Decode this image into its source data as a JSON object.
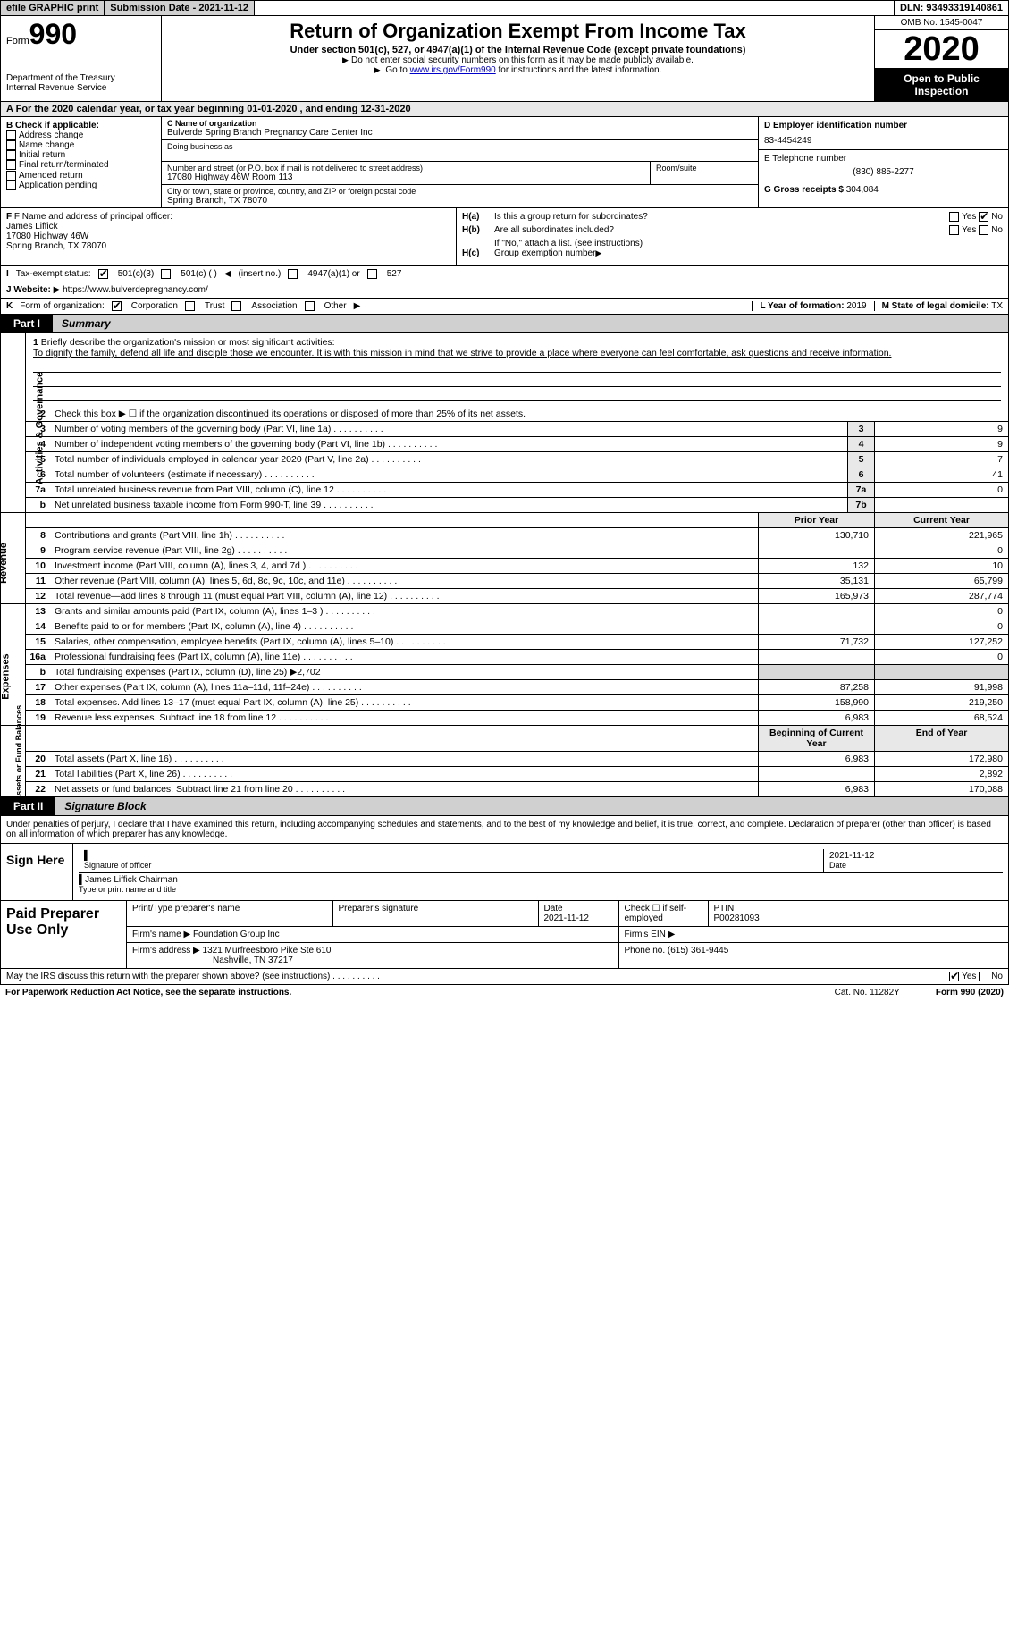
{
  "topbar": {
    "efile": "efile GRAPHIC print",
    "submission": "Submission Date - 2021-11-12",
    "dln": "DLN: 93493319140861"
  },
  "header": {
    "form_prefix": "Form",
    "form_no": "990",
    "dept": "Department of the Treasury\nInternal Revenue Service",
    "title": "Return of Organization Exempt From Income Tax",
    "sub": "Under section 501(c), 527, or 4947(a)(1) of the Internal Revenue Code (except private foundations)",
    "note1": "Do not enter social security numbers on this form as it may be made publicly available.",
    "note2_pre": "Go to ",
    "note2_link": "www.irs.gov/Form990",
    "note2_post": " for instructions and the latest information.",
    "omb": "OMB No. 1545-0047",
    "year": "2020",
    "insp": "Open to Public Inspection"
  },
  "lineA": "For the 2020 calendar year, or tax year beginning 01-01-2020   , and ending 12-31-2020",
  "colB": {
    "title": "B Check if applicable:",
    "items": [
      "Address change",
      "Name change",
      "Initial return",
      "Final return/terminated",
      "Amended return",
      "Application pending"
    ]
  },
  "colC": {
    "name_lbl": "C Name of organization",
    "name": "Bulverde Spring Branch Pregnancy Care Center Inc",
    "dba_lbl": "Doing business as",
    "dba": "",
    "addr_lbl": "Number and street (or P.O. box if mail is not delivered to street address)",
    "addr": "17080 Highway 46W Room 113",
    "room_lbl": "Room/suite",
    "city_lbl": "City or town, state or province, country, and ZIP or foreign postal code",
    "city": "Spring Branch, TX  78070"
  },
  "colD": {
    "ein_lbl": "D Employer identification number",
    "ein": "83-4454249",
    "tel_lbl": "E Telephone number",
    "tel": "(830) 885-2277",
    "gross_lbl": "G Gross receipts $",
    "gross": "304,084"
  },
  "f": {
    "lbl": "F Name and address of principal officer:",
    "name": "James Liffick",
    "addr1": "17080 Highway 46W",
    "addr2": "Spring Branch, TX  78070"
  },
  "h": {
    "a_lbl": "Is this a group return for subordinates?",
    "a_yes": "Yes",
    "a_no": "No",
    "b_lbl": "Are all subordinates included?",
    "b_note": "If \"No,\" attach a list. (see instructions)",
    "c_lbl": "Group exemption number"
  },
  "i": {
    "lbl": "Tax-exempt status:",
    "o1": "501(c)(3)",
    "o2": "501(c) (  )",
    "o2b": "(insert no.)",
    "o3": "4947(a)(1) or",
    "o4": "527"
  },
  "j": {
    "lbl": "Website:",
    "val": "https://www.bulverdepregnancy.com/"
  },
  "k": {
    "lbl": "Form of organization:",
    "o1": "Corporation",
    "o2": "Trust",
    "o3": "Association",
    "o4": "Other",
    "l_lbl": "L Year of formation:",
    "l_val": "2019",
    "m_lbl": "M State of legal domicile:",
    "m_val": "TX"
  },
  "part1": {
    "lab": "Part I",
    "ttl": "Summary"
  },
  "mission": {
    "q": "Briefly describe the organization's mission or most significant activities:",
    "a": "To dignify the family, defend all life and disciple those we encounter. It is with this mission in mind that we strive to provide a place where everyone can feel comfortable, ask questions and receive information."
  },
  "gov": {
    "l2": "Check this box ▶ ☐ if the organization discontinued its operations or disposed of more than 25% of its net assets.",
    "rows": [
      {
        "n": "3",
        "t": "Number of voting members of the governing body (Part VI, line 1a)",
        "b": "3",
        "v": "9"
      },
      {
        "n": "4",
        "t": "Number of independent voting members of the governing body (Part VI, line 1b)",
        "b": "4",
        "v": "9"
      },
      {
        "n": "5",
        "t": "Total number of individuals employed in calendar year 2020 (Part V, line 2a)",
        "b": "5",
        "v": "7"
      },
      {
        "n": "6",
        "t": "Total number of volunteers (estimate if necessary)",
        "b": "6",
        "v": "41"
      },
      {
        "n": "7a",
        "t": "Total unrelated business revenue from Part VIII, column (C), line 12",
        "b": "7a",
        "v": "0"
      },
      {
        "n": "b",
        "t": "Net unrelated business taxable income from Form 990-T, line 39",
        "b": "7b",
        "v": ""
      }
    ]
  },
  "rev_head": {
    "py": "Prior Year",
    "cy": "Current Year"
  },
  "rev": [
    {
      "n": "8",
      "t": "Contributions and grants (Part VIII, line 1h)",
      "p": "130,710",
      "c": "221,965"
    },
    {
      "n": "9",
      "t": "Program service revenue (Part VIII, line 2g)",
      "p": "",
      "c": "0"
    },
    {
      "n": "10",
      "t": "Investment income (Part VIII, column (A), lines 3, 4, and 7d )",
      "p": "132",
      "c": "10"
    },
    {
      "n": "11",
      "t": "Other revenue (Part VIII, column (A), lines 5, 6d, 8c, 9c, 10c, and 11e)",
      "p": "35,131",
      "c": "65,799"
    },
    {
      "n": "12",
      "t": "Total revenue—add lines 8 through 11 (must equal Part VIII, column (A), line 12)",
      "p": "165,973",
      "c": "287,774"
    }
  ],
  "exp": [
    {
      "n": "13",
      "t": "Grants and similar amounts paid (Part IX, column (A), lines 1–3 )",
      "p": "",
      "c": "0"
    },
    {
      "n": "14",
      "t": "Benefits paid to or for members (Part IX, column (A), line 4)",
      "p": "",
      "c": "0"
    },
    {
      "n": "15",
      "t": "Salaries, other compensation, employee benefits (Part IX, column (A), lines 5–10)",
      "p": "71,732",
      "c": "127,252"
    },
    {
      "n": "16a",
      "t": "Professional fundraising fees (Part IX, column (A), line 11e)",
      "p": "",
      "c": "0"
    },
    {
      "n": "b",
      "t_html": "Total fundraising expenses (Part IX, column (D), line 25) ▶2,702",
      "p": "GREY",
      "c": "GREY"
    },
    {
      "n": "17",
      "t": "Other expenses (Part IX, column (A), lines 11a–11d, 11f–24e)",
      "p": "87,258",
      "c": "91,998"
    },
    {
      "n": "18",
      "t": "Total expenses. Add lines 13–17 (must equal Part IX, column (A), line 25)",
      "p": "158,990",
      "c": "219,250"
    },
    {
      "n": "19",
      "t": "Revenue less expenses. Subtract line 18 from line 12",
      "p": "6,983",
      "c": "68,524"
    }
  ],
  "na_head": {
    "b": "Beginning of Current Year",
    "e": "End of Year"
  },
  "na": [
    {
      "n": "20",
      "t": "Total assets (Part X, line 16)",
      "p": "6,983",
      "c": "172,980"
    },
    {
      "n": "21",
      "t": "Total liabilities (Part X, line 26)",
      "p": "",
      "c": "2,892"
    },
    {
      "n": "22",
      "t": "Net assets or fund balances. Subtract line 21 from line 20",
      "p": "6,983",
      "c": "170,088"
    }
  ],
  "part2": {
    "lab": "Part II",
    "ttl": "Signature Block"
  },
  "sigdecl": "Under penalties of perjury, I declare that I have examined this return, including accompanying schedules and statements, and to the best of my knowledge and belief, it is true, correct, and complete. Declaration of preparer (other than officer) is based on all information of which preparer has any knowledge.",
  "sign": {
    "l": "Sign Here",
    "sig_lbl": "Signature of officer",
    "date_lbl": "Date",
    "date": "2021-11-12",
    "name": "James Liffick Chairman",
    "type_lbl": "Type or print name and title"
  },
  "prep": {
    "l": "Paid Preparer Use Only",
    "h1": "Print/Type preparer's name",
    "h2": "Preparer's signature",
    "h3": "Date",
    "h3v": "2021-11-12",
    "h4": "Check ☐ if self-employed",
    "h5": "PTIN",
    "h5v": "P00281093",
    "firm_lbl": "Firm's name",
    "firm": "Foundation Group Inc",
    "ein_lbl": "Firm's EIN",
    "addr_lbl": "Firm's address",
    "addr1": "1321 Murfreesboro Pike Ste 610",
    "addr2": "Nashville, TN  37217",
    "ph_lbl": "Phone no.",
    "ph": "(615) 361-9445"
  },
  "foot": {
    "q": "May the IRS discuss this return with the preparer shown above? (see instructions)",
    "yes": "Yes",
    "no": "No",
    "pra": "For Paperwork Reduction Act Notice, see the separate instructions.",
    "cat": "Cat. No. 11282Y",
    "form": "Form 990 (2020)"
  },
  "vlabels": {
    "gov": "Activities & Governance",
    "rev": "Revenue",
    "exp": "Expenses",
    "na": "Net Assets or Fund Balances"
  }
}
